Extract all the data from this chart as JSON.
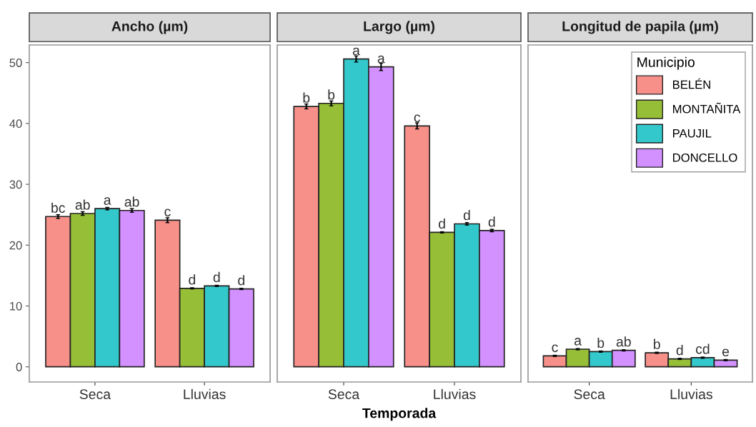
{
  "chart_data": [
    {
      "type": "bar",
      "title": "Ancho (µm)",
      "categories": [
        "Seca",
        "Lluvias"
      ],
      "ylim": [
        -2.5,
        52.9
      ],
      "yticks": [
        0,
        10,
        20,
        30,
        40,
        50
      ],
      "series": [
        {
          "color": "#f8908a",
          "values": [
            24.7,
            24.1
          ],
          "errors": [
            0.3,
            0.4
          ],
          "value_labels": [
            "bc",
            "c"
          ]
        },
        {
          "color": "#97be37",
          "values": [
            25.2,
            12.9
          ],
          "errors": [
            0.3,
            0.1
          ],
          "value_labels": [
            "ab",
            "d"
          ]
        },
        {
          "color": "#33c9cc",
          "values": [
            26.0,
            13.3
          ],
          "errors": [
            0.2,
            0.1
          ],
          "value_labels": [
            "a",
            "d"
          ]
        },
        {
          "color": "#d291ff",
          "values": [
            25.7,
            12.8
          ],
          "errors": [
            0.3,
            0.1
          ],
          "value_labels": [
            "ab",
            "d"
          ]
        }
      ]
    },
    {
      "type": "bar",
      "title": "Largo (µm)",
      "xlabel": "Temporada",
      "categories": [
        "Seca",
        "Lluvias"
      ],
      "ylim": [
        -2.5,
        52.9
      ],
      "yticks": [
        0,
        10,
        20,
        30,
        40,
        50
      ],
      "tick_labels": "x",
      "series": [
        {
          "color": "#f8908a",
          "values": [
            42.8,
            39.6
          ],
          "errors": [
            0.4,
            0.5
          ],
          "value_labels": [
            "b",
            "c"
          ]
        },
        {
          "color": "#97be37",
          "values": [
            43.3,
            22.1
          ],
          "errors": [
            0.4,
            0.1
          ],
          "value_labels": [
            "b",
            "d"
          ]
        },
        {
          "color": "#33c9cc",
          "values": [
            50.6,
            23.5
          ],
          "errors": [
            0.5,
            0.2
          ],
          "value_labels": [
            "a",
            "d"
          ]
        },
        {
          "color": "#d291ff",
          "values": [
            49.3,
            22.4
          ],
          "errors": [
            0.6,
            0.2
          ],
          "value_labels": [
            "a",
            "d"
          ]
        }
      ]
    },
    {
      "type": "bar",
      "title": "Longitud de papila (µm)",
      "categories": [
        "Seca",
        "Lluvias"
      ],
      "ylim": [
        -2.5,
        52.9
      ],
      "yticks": [
        0,
        10,
        20,
        30,
        40,
        50
      ],
      "tick_labels": "x",
      "legend": "top right",
      "legend_title": "Municipio",
      "series": [
        {
          "name": "BELÉN",
          "color": "#f8908a",
          "values": [
            1.8,
            2.3
          ],
          "errors": [
            0.1,
            0.1
          ],
          "value_labels": [
            "c",
            "b"
          ]
        },
        {
          "name": "MONTAÑITA",
          "color": "#97be37",
          "values": [
            2.9,
            1.3
          ],
          "errors": [
            0.1,
            0.1
          ],
          "value_labels": [
            "a",
            "d"
          ]
        },
        {
          "name": "PAUJIL",
          "color": "#33c9cc",
          "values": [
            2.5,
            1.5
          ],
          "errors": [
            0.1,
            0.1
          ],
          "value_labels": [
            "b",
            "cd"
          ]
        },
        {
          "name": "DONCELLO",
          "color": "#d291ff",
          "values": [
            2.7,
            1.1
          ],
          "errors": [
            0.1,
            0.1
          ],
          "value_labels": [
            "ab",
            "e"
          ]
        }
      ]
    }
  ]
}
